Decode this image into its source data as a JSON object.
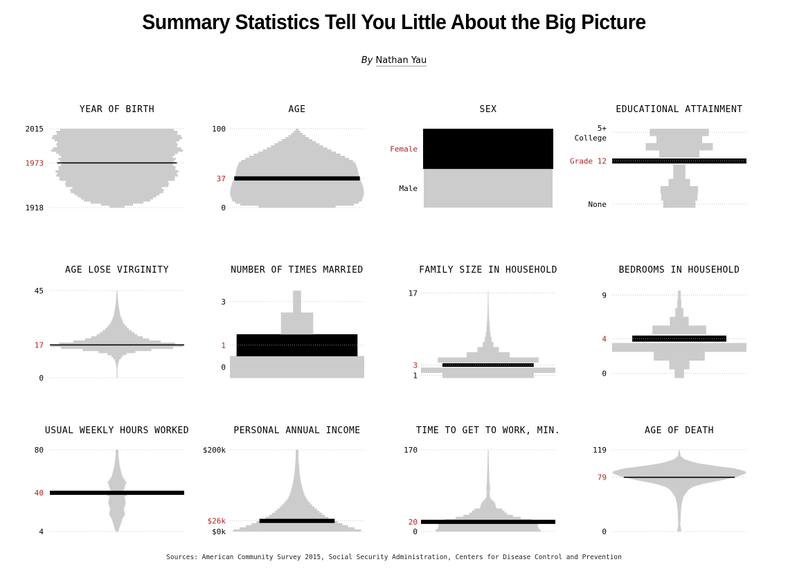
{
  "title": "Summary Statistics Tell You Little About the Big Picture",
  "byline": {
    "prefix": "By",
    "author": "Nathan Yau"
  },
  "sources": "Sources: American Community Survey 2015, Social Security Administration, Centers for Disease Control and Prevention",
  "colors": {
    "distribution": "#cccccc",
    "highlight": "#000000",
    "median_label": "#b22222",
    "grid": "#bbbbbb",
    "text": "#000000"
  },
  "chart_data": [
    {
      "type": "area",
      "title": "YEAR OF BIRTH",
      "ylim": [
        1918,
        2015
      ],
      "tick_labels": [
        {
          "value": 1918,
          "label": "1918"
        },
        {
          "value": 2015,
          "label": "2015"
        }
      ],
      "median": {
        "value": 1973,
        "label": "1973"
      },
      "style": "bars",
      "profile": [
        [
          1918,
          0.05
        ],
        [
          1921,
          0.2
        ],
        [
          1925,
          0.45
        ],
        [
          1930,
          0.6
        ],
        [
          1935,
          0.66
        ],
        [
          1940,
          0.7
        ],
        [
          1945,
          0.75
        ],
        [
          1950,
          0.8
        ],
        [
          1955,
          0.9
        ],
        [
          1960,
          0.95
        ],
        [
          1965,
          0.9
        ],
        [
          1970,
          0.88
        ],
        [
          1975,
          0.9
        ],
        [
          1980,
          0.92
        ],
        [
          1985,
          0.95
        ],
        [
          1990,
          0.97
        ],
        [
          1995,
          0.95
        ],
        [
          2000,
          0.96
        ],
        [
          2005,
          0.95
        ],
        [
          2010,
          0.93
        ],
        [
          2015,
          0.85
        ]
      ]
    },
    {
      "type": "area",
      "title": "AGE",
      "ylim": [
        0,
        100
      ],
      "tick_labels": [
        {
          "value": 0,
          "label": "0"
        },
        {
          "value": 100,
          "label": "100"
        }
      ],
      "median": {
        "value": 37,
        "label": "37"
      },
      "style": "bars",
      "profile": [
        [
          0,
          0.38
        ],
        [
          3,
          0.82
        ],
        [
          8,
          0.96
        ],
        [
          18,
          1.0
        ],
        [
          28,
          0.98
        ],
        [
          40,
          0.92
        ],
        [
          50,
          0.9
        ],
        [
          58,
          0.86
        ],
        [
          65,
          0.7
        ],
        [
          72,
          0.52
        ],
        [
          78,
          0.38
        ],
        [
          84,
          0.26
        ],
        [
          90,
          0.14
        ],
        [
          95,
          0.06
        ],
        [
          100,
          0.01
        ]
      ]
    },
    {
      "type": "bar",
      "title": "SEX",
      "categories": [
        "Male",
        "Female"
      ],
      "values": [
        0.49,
        0.51
      ],
      "median": {
        "label": "Female"
      }
    },
    {
      "type": "bar",
      "title": "EDUCATIONAL ATTAINMENT",
      "categories": [
        "None",
        "",
        "",
        "",
        "",
        "",
        "Grade 12",
        "",
        "",
        "",
        "5+ College"
      ],
      "values": [
        0.24,
        0.27,
        0.28,
        0.16,
        0.09,
        0.09,
        1.0,
        0.3,
        0.5,
        0.34,
        0.44
      ],
      "tick_labels": [
        "None",
        "5+ College"
      ],
      "median": {
        "label": "Grade 12"
      }
    },
    {
      "type": "area",
      "title": "AGE LOSE VIRGINITY",
      "ylim": [
        0,
        45
      ],
      "tick_labels": [
        {
          "value": 0,
          "label": "0"
        },
        {
          "value": 45,
          "label": "45"
        }
      ],
      "median": {
        "value": 17,
        "label": "17"
      },
      "style": "bars",
      "profile": [
        [
          4,
          0.0
        ],
        [
          6,
          0.01
        ],
        [
          9,
          0.03
        ],
        [
          12,
          0.1
        ],
        [
          14,
          0.35
        ],
        [
          15,
          0.7
        ],
        [
          16,
          0.95
        ],
        [
          17,
          1.0
        ],
        [
          18,
          0.8
        ],
        [
          19,
          0.6
        ],
        [
          20,
          0.45
        ],
        [
          22,
          0.3
        ],
        [
          25,
          0.18
        ],
        [
          28,
          0.1
        ],
        [
          32,
          0.05
        ],
        [
          38,
          0.02
        ],
        [
          45,
          0.005
        ]
      ]
    },
    {
      "type": "bar",
      "title": "NUMBER OF TIMES MARRIED",
      "categories": [
        "0",
        "1",
        "2",
        "3"
      ],
      "values": [
        1.0,
        0.9,
        0.24,
        0.06
      ],
      "tick_labels": [
        "0",
        "1",
        "3"
      ],
      "median": {
        "label": "1"
      }
    },
    {
      "type": "bar",
      "title": "FAMILY SIZE IN HOUSEHOLD",
      "categories": [
        "1",
        "2",
        "3",
        "4",
        "5",
        "6",
        "7",
        "8",
        "9",
        "10",
        "11",
        "12",
        "13",
        "14",
        "15",
        "16",
        "17"
      ],
      "values": [
        0.68,
        1.0,
        0.68,
        0.75,
        0.32,
        0.16,
        0.08,
        0.05,
        0.035,
        0.025,
        0.02,
        0.015,
        0.01,
        0.008,
        0.006,
        0.005,
        0.004
      ],
      "tick_labels": [
        "1",
        "17"
      ],
      "median": {
        "label": "3"
      }
    },
    {
      "type": "bar",
      "title": "BEDROOMS IN HOUSEHOLD",
      "categories": [
        "0",
        "1",
        "2",
        "3",
        "4",
        "5",
        "6",
        "7",
        "8",
        "9"
      ],
      "values": [
        0.07,
        0.15,
        0.38,
        1.0,
        0.7,
        0.4,
        0.14,
        0.06,
        0.03,
        0.02
      ],
      "tick_labels": [
        "0",
        "4",
        "9"
      ],
      "median": {
        "label": "4"
      }
    },
    {
      "type": "area",
      "title": "USUAL WEEKLY HOURS WORKED",
      "ylim": [
        4,
        80
      ],
      "tick_labels": [
        {
          "value": 4,
          "label": "4"
        },
        {
          "value": 80,
          "label": "80"
        }
      ],
      "median": {
        "value": 40,
        "label": "40"
      },
      "style": "bars",
      "profile": [
        [
          4,
          0.02
        ],
        [
          10,
          0.05
        ],
        [
          16,
          0.08
        ],
        [
          20,
          0.12
        ],
        [
          25,
          0.1
        ],
        [
          30,
          0.13
        ],
        [
          35,
          0.12
        ],
        [
          38,
          0.1
        ],
        [
          40,
          1.0
        ],
        [
          42,
          0.1
        ],
        [
          45,
          0.11
        ],
        [
          50,
          0.14
        ],
        [
          55,
          0.08
        ],
        [
          60,
          0.06
        ],
        [
          65,
          0.04
        ],
        [
          70,
          0.03
        ],
        [
          75,
          0.02
        ],
        [
          80,
          0.02
        ]
      ]
    },
    {
      "type": "area",
      "title": "PERSONAL ANNUAL INCOME",
      "ylim": [
        0,
        200
      ],
      "tick_labels": [
        {
          "value": 0,
          "label": "$0k"
        },
        {
          "value": 200,
          "label": "$200k"
        }
      ],
      "median": {
        "value": 26,
        "label": "$26k"
      },
      "style": "bars",
      "profile": [
        [
          0,
          1.0
        ],
        [
          8,
          0.85
        ],
        [
          15,
          0.72
        ],
        [
          22,
          0.62
        ],
        [
          30,
          0.5
        ],
        [
          40,
          0.4
        ],
        [
          50,
          0.32
        ],
        [
          60,
          0.25
        ],
        [
          70,
          0.19
        ],
        [
          80,
          0.14
        ],
        [
          90,
          0.11
        ],
        [
          100,
          0.09
        ],
        [
          120,
          0.06
        ],
        [
          140,
          0.04
        ],
        [
          160,
          0.03
        ],
        [
          180,
          0.02
        ],
        [
          200,
          0.02
        ]
      ]
    },
    {
      "type": "area",
      "title": "TIME TO GET TO WORK, MIN.",
      "ylim": [
        0,
        170
      ],
      "tick_labels": [
        {
          "value": 0,
          "label": "0"
        },
        {
          "value": 170,
          "label": "170"
        }
      ],
      "median": {
        "value": 20,
        "label": "20"
      },
      "style": "bars",
      "profile": [
        [
          0,
          0.8
        ],
        [
          5,
          0.76
        ],
        [
          10,
          0.74
        ],
        [
          15,
          0.73
        ],
        [
          20,
          1.0
        ],
        [
          25,
          0.55
        ],
        [
          30,
          0.45
        ],
        [
          35,
          0.3
        ],
        [
          40,
          0.25
        ],
        [
          45,
          0.22
        ],
        [
          50,
          0.12
        ],
        [
          60,
          0.1
        ],
        [
          70,
          0.03
        ],
        [
          80,
          0.02
        ],
        [
          90,
          0.03
        ],
        [
          100,
          0.02
        ],
        [
          120,
          0.015
        ],
        [
          140,
          0.01
        ],
        [
          170,
          0.005
        ]
      ]
    },
    {
      "type": "area",
      "title": "AGE OF DEATH",
      "ylim": [
        0,
        119
      ],
      "tick_labels": [
        {
          "value": 0,
          "label": "0"
        },
        {
          "value": 119,
          "label": "119"
        }
      ],
      "median": {
        "value": 79,
        "label": "79"
      },
      "style": "smooth",
      "profile": [
        [
          0,
          0.03
        ],
        [
          1,
          0.03
        ],
        [
          10,
          0.015
        ],
        [
          20,
          0.02
        ],
        [
          30,
          0.025
        ],
        [
          40,
          0.035
        ],
        [
          50,
          0.06
        ],
        [
          60,
          0.13
        ],
        [
          65,
          0.2
        ],
        [
          70,
          0.38
        ],
        [
          75,
          0.65
        ],
        [
          80,
          0.87
        ],
        [
          85,
          1.0
        ],
        [
          88,
          0.98
        ],
        [
          92,
          0.82
        ],
        [
          96,
          0.5
        ],
        [
          100,
          0.25
        ],
        [
          105,
          0.08
        ],
        [
          110,
          0.02
        ],
        [
          119,
          0.005
        ]
      ]
    }
  ]
}
